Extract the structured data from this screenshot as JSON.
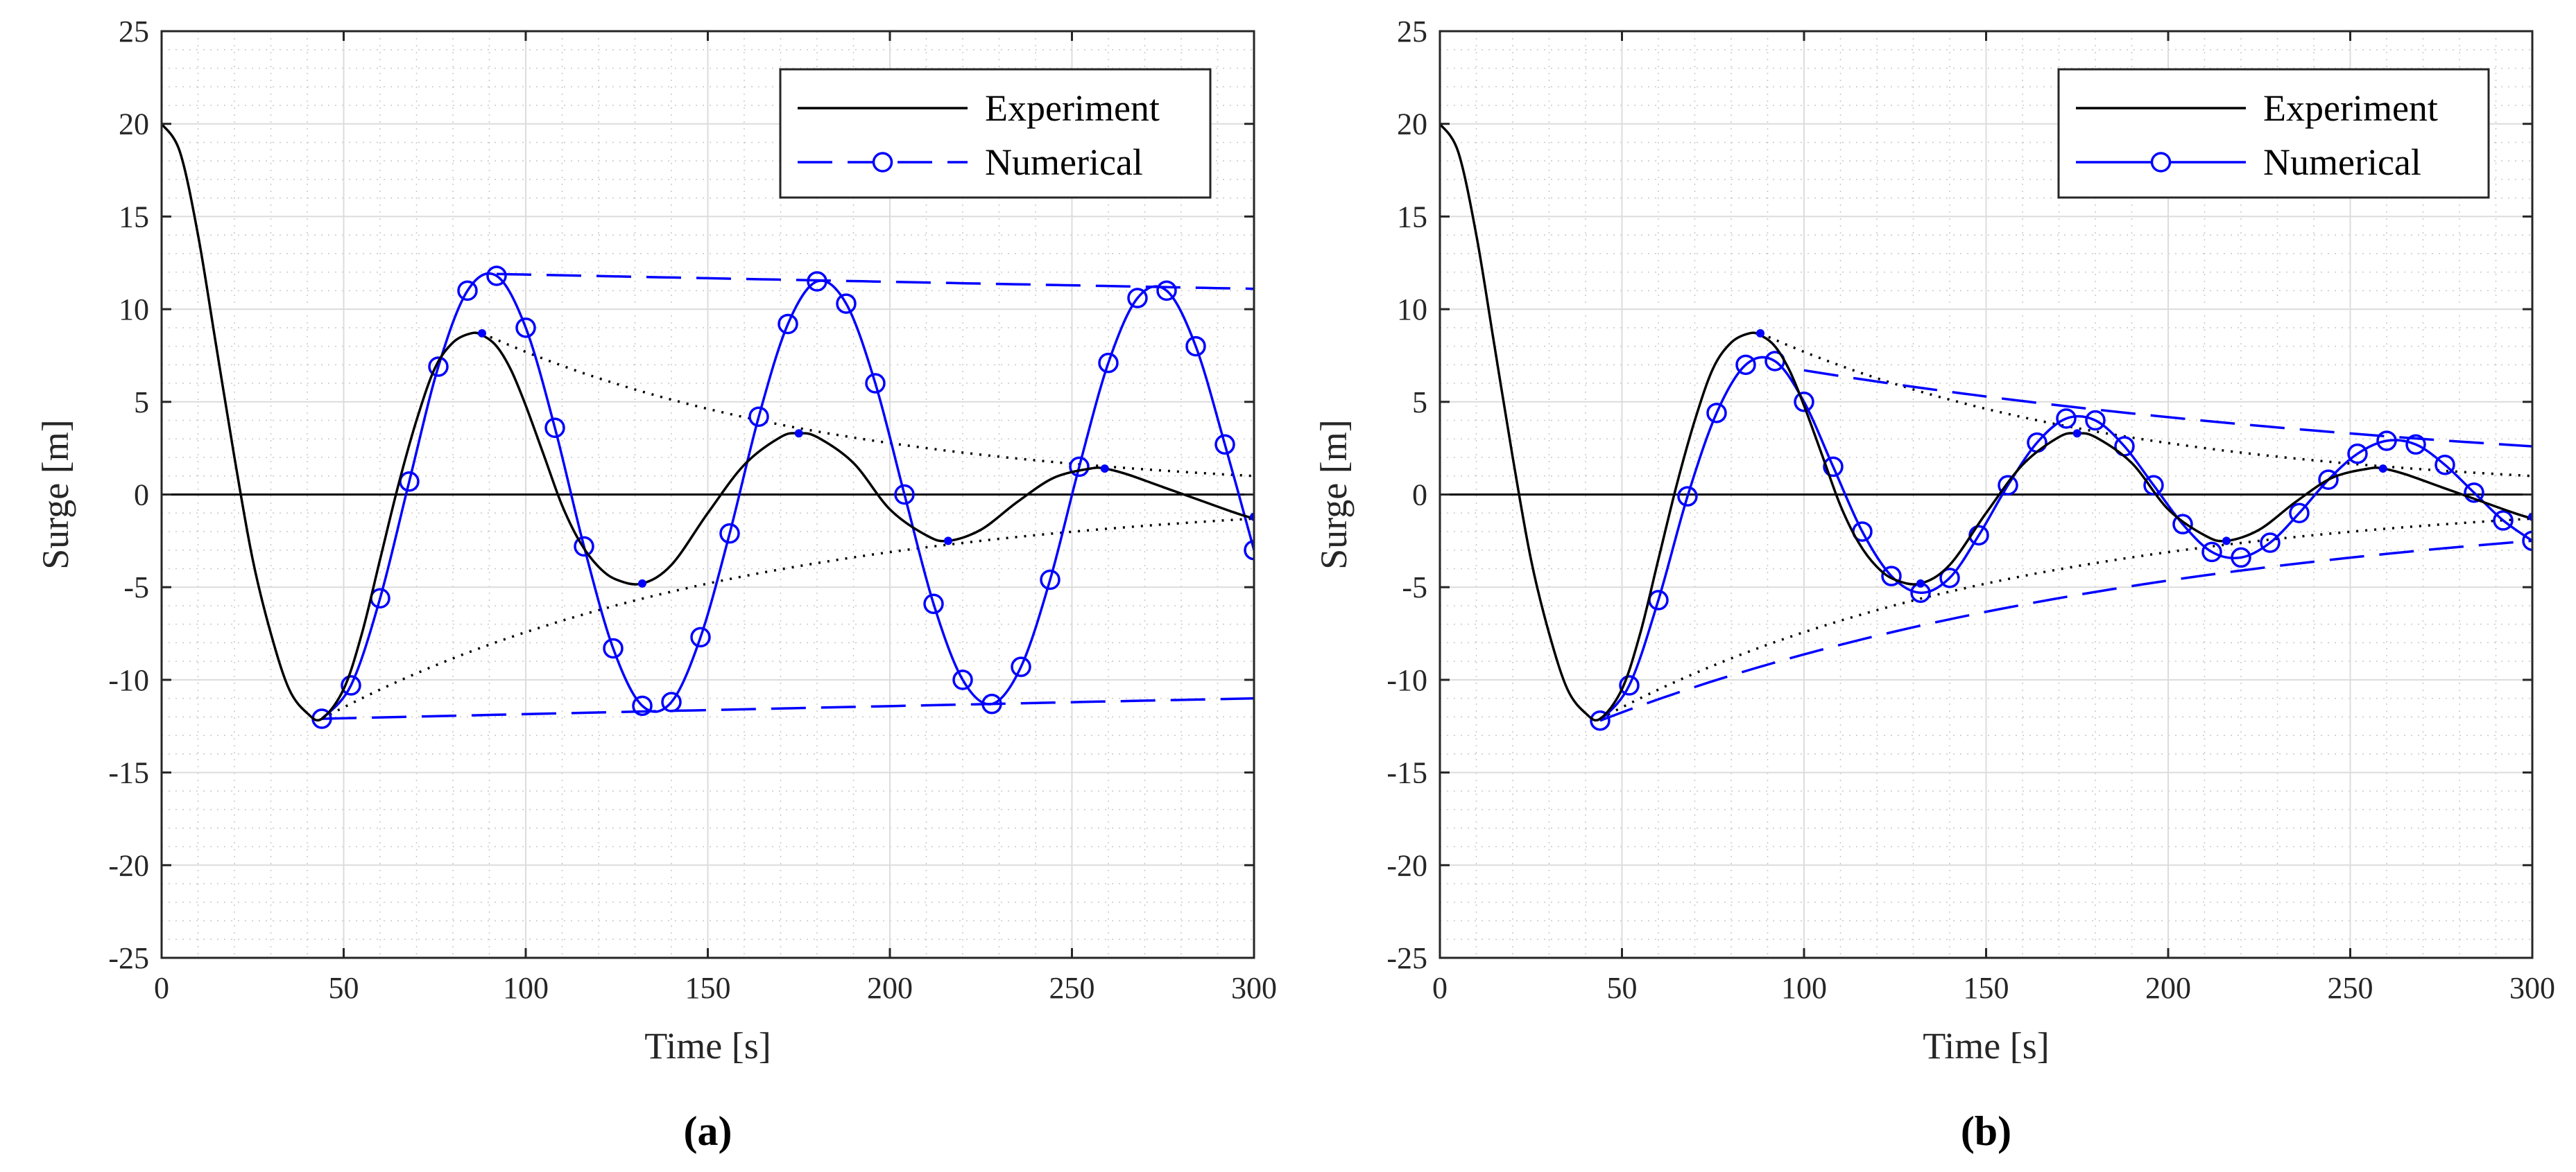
{
  "chart_data": [
    {
      "type": "line",
      "panel_label": "(a)",
      "xlabel": "Time [s]",
      "ylabel": "Surge [m]",
      "xlim": [
        0,
        300
      ],
      "ylim": [
        -25,
        25
      ],
      "xticks": [
        0,
        50,
        100,
        150,
        200,
        250,
        300
      ],
      "yticks": [
        25,
        20,
        15,
        10,
        5,
        0,
        -5,
        -10,
        -15,
        -20,
        -25
      ],
      "grid": true,
      "legend_position": "top-right",
      "legend": [
        "Experiment",
        "Numerical"
      ],
      "numerical_line_style": "dashed-envelope",
      "series": [
        {
          "name": "Experiment",
          "color": "#000000",
          "x": [
            0,
            5,
            10,
            15,
            20,
            25,
            30,
            35,
            40,
            44,
            50,
            55,
            60,
            65,
            70,
            75,
            80,
            85,
            88,
            92,
            96,
            100,
            105,
            110,
            115,
            120,
            125,
            132,
            140,
            150,
            160,
            170,
            175,
            180,
            190,
            200,
            210,
            216,
            225,
            235,
            245,
            255,
            259,
            265,
            275,
            285,
            295,
            300
          ],
          "y": [
            20,
            18.5,
            14,
            8,
            2,
            -3.5,
            -7.5,
            -10.5,
            -11.8,
            -12.1,
            -10.5,
            -7.5,
            -3.5,
            0.5,
            4,
            6.8,
            8.2,
            8.7,
            8.6,
            8,
            6.7,
            4.8,
            2.1,
            -0.6,
            -2.6,
            -3.9,
            -4.6,
            -4.8,
            -3.8,
            -1,
            1.6,
            3.1,
            3.3,
            3.1,
            1.7,
            -0.8,
            -2.2,
            -2.5,
            -1.9,
            -0.4,
            0.9,
            1.4,
            1.4,
            1.1,
            0.4,
            -0.3,
            -1,
            -1.3
          ]
        },
        {
          "name": "Numerical",
          "color": "#0000ff",
          "x": [
            44,
            52,
            60,
            68,
            76,
            84,
            92,
            100,
            108,
            116,
            124,
            132,
            140,
            148,
            156,
            164,
            172,
            180,
            188,
            196,
            204,
            212,
            220,
            228,
            236,
            244,
            252,
            260,
            268,
            276,
            284,
            292,
            300
          ],
          "y": [
            -12.1,
            -10.3,
            -5.6,
            0.7,
            6.9,
            11,
            11.8,
            9,
            3.6,
            -2.8,
            -8.3,
            -11.4,
            -11.2,
            -7.7,
            -2.1,
            4.2,
            9.2,
            11.5,
            10.3,
            6,
            0,
            -5.9,
            -10,
            -11.3,
            -9.3,
            -4.6,
            1.5,
            7.1,
            10.6,
            11,
            8,
            2.7,
            -3
          ]
        }
      ],
      "envelopes": {
        "experiment_upper": {
          "x": [
            88,
            300
          ],
          "y": [
            8.7,
            1
          ]
        },
        "experiment_lower": {
          "x": [
            44,
            300
          ],
          "y": [
            -12.1,
            -1.3
          ]
        },
        "numerical_upper": {
          "x": [
            92,
            300
          ],
          "y": [
            11.9,
            11.1
          ]
        },
        "numerical_lower": {
          "x": [
            44,
            300
          ],
          "y": [
            -12.1,
            -11
          ]
        }
      }
    },
    {
      "type": "line",
      "panel_label": "(b)",
      "xlabel": "Time [s]",
      "ylabel": "Surge [m]",
      "xlim": [
        0,
        300
      ],
      "ylim": [
        -25,
        25
      ],
      "xticks": [
        0,
        50,
        100,
        150,
        200,
        250,
        300
      ],
      "yticks": [
        25,
        20,
        15,
        10,
        5,
        0,
        -5,
        -10,
        -15,
        -20,
        -25
      ],
      "grid": true,
      "legend_position": "top-right",
      "legend": [
        "Experiment",
        "Numerical"
      ],
      "numerical_line_style": "solid",
      "series": [
        {
          "name": "Experiment",
          "color": "#000000",
          "x": [
            0,
            5,
            10,
            15,
            20,
            25,
            30,
            35,
            40,
            44,
            50,
            55,
            60,
            65,
            70,
            75,
            80,
            85,
            88,
            92,
            96,
            100,
            105,
            110,
            115,
            120,
            125,
            132,
            140,
            150,
            160,
            170,
            175,
            180,
            190,
            200,
            210,
            216,
            225,
            235,
            245,
            255,
            259,
            265,
            275,
            285,
            295,
            300
          ],
          "y": [
            20,
            18.5,
            14,
            8,
            2,
            -3.5,
            -7.5,
            -10.5,
            -11.8,
            -12.1,
            -10.5,
            -7.5,
            -3.5,
            0.5,
            4,
            6.8,
            8.2,
            8.7,
            8.6,
            8,
            6.7,
            4.8,
            2.1,
            -0.6,
            -2.6,
            -3.9,
            -4.6,
            -4.8,
            -3.8,
            -1,
            1.6,
            3.1,
            3.3,
            3.1,
            1.7,
            -0.8,
            -2.2,
            -2.5,
            -1.9,
            -0.4,
            0.9,
            1.4,
            1.4,
            1.1,
            0.4,
            -0.3,
            -1,
            -1.3
          ]
        },
        {
          "name": "Numerical",
          "color": "#0000ff",
          "x": [
            44,
            52,
            60,
            68,
            76,
            84,
            92,
            100,
            108,
            116,
            124,
            132,
            140,
            148,
            156,
            164,
            172,
            180,
            188,
            196,
            204,
            212,
            220,
            228,
            236,
            244,
            252,
            260,
            268,
            276,
            284,
            292,
            300
          ],
          "y": [
            -12.2,
            -10.3,
            -5.7,
            -0.1,
            4.4,
            7,
            7.2,
            5,
            1.5,
            -2,
            -4.4,
            -5.3,
            -4.5,
            -2.2,
            0.5,
            2.8,
            4.1,
            4,
            2.6,
            0.5,
            -1.6,
            -3.1,
            -3.4,
            -2.6,
            -1,
            0.8,
            2.2,
            2.9,
            2.7,
            1.6,
            0.1,
            -1.4,
            -2.5
          ]
        }
      ],
      "envelopes": {
        "experiment_upper": {
          "x": [
            88,
            300
          ],
          "y": [
            8.7,
            1
          ]
        },
        "experiment_lower": {
          "x": [
            44,
            300
          ],
          "y": [
            -12.1,
            -1.3
          ]
        },
        "numerical_upper": {
          "x": [
            100,
            300
          ],
          "y": [
            6.7,
            2.6
          ]
        },
        "numerical_lower": {
          "x": [
            44,
            300
          ],
          "y": [
            -12.2,
            -2.5
          ]
        }
      }
    }
  ]
}
